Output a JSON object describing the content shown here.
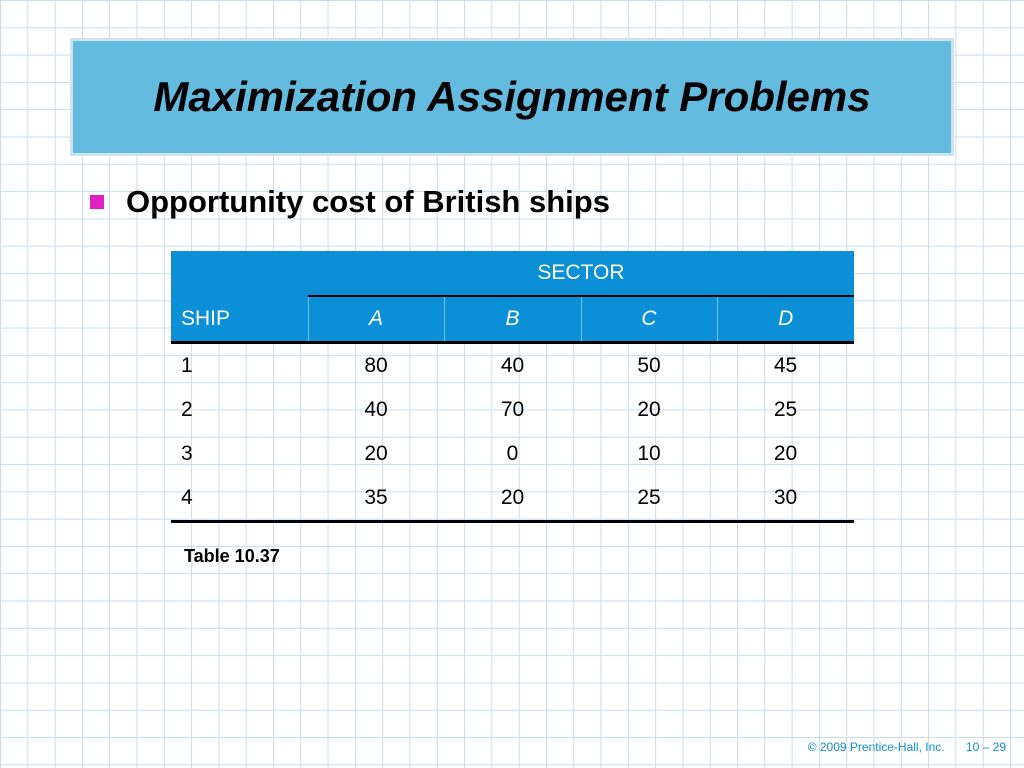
{
  "title": "Maximization Assignment Problems",
  "bullet": "Opportunity cost of British ships",
  "table": {
    "group_header": "SECTOR",
    "row_header": "SHIP",
    "columns": [
      "A",
      "B",
      "C",
      "D"
    ],
    "rows": [
      {
        "ship": "1",
        "values": [
          "80",
          "40",
          "50",
          "45"
        ]
      },
      {
        "ship": "2",
        "values": [
          "40",
          "70",
          "20",
          "25"
        ]
      },
      {
        "ship": "3",
        "values": [
          "20",
          "0",
          "10",
          "20"
        ]
      },
      {
        "ship": "4",
        "values": [
          "35",
          "20",
          "25",
          "30"
        ]
      }
    ]
  },
  "caption": "Table 10.37",
  "footer": {
    "copyright": "© 2009 Prentice-Hall, Inc.",
    "page": "10 – 29"
  },
  "colors": {
    "title_bg": "#63bbe0",
    "header_bg": "#0b8fd6",
    "bullet": "#e020c0",
    "footer_text": "#0c8fd4"
  },
  "icons": {
    "bullet": "square-bullet-icon"
  }
}
